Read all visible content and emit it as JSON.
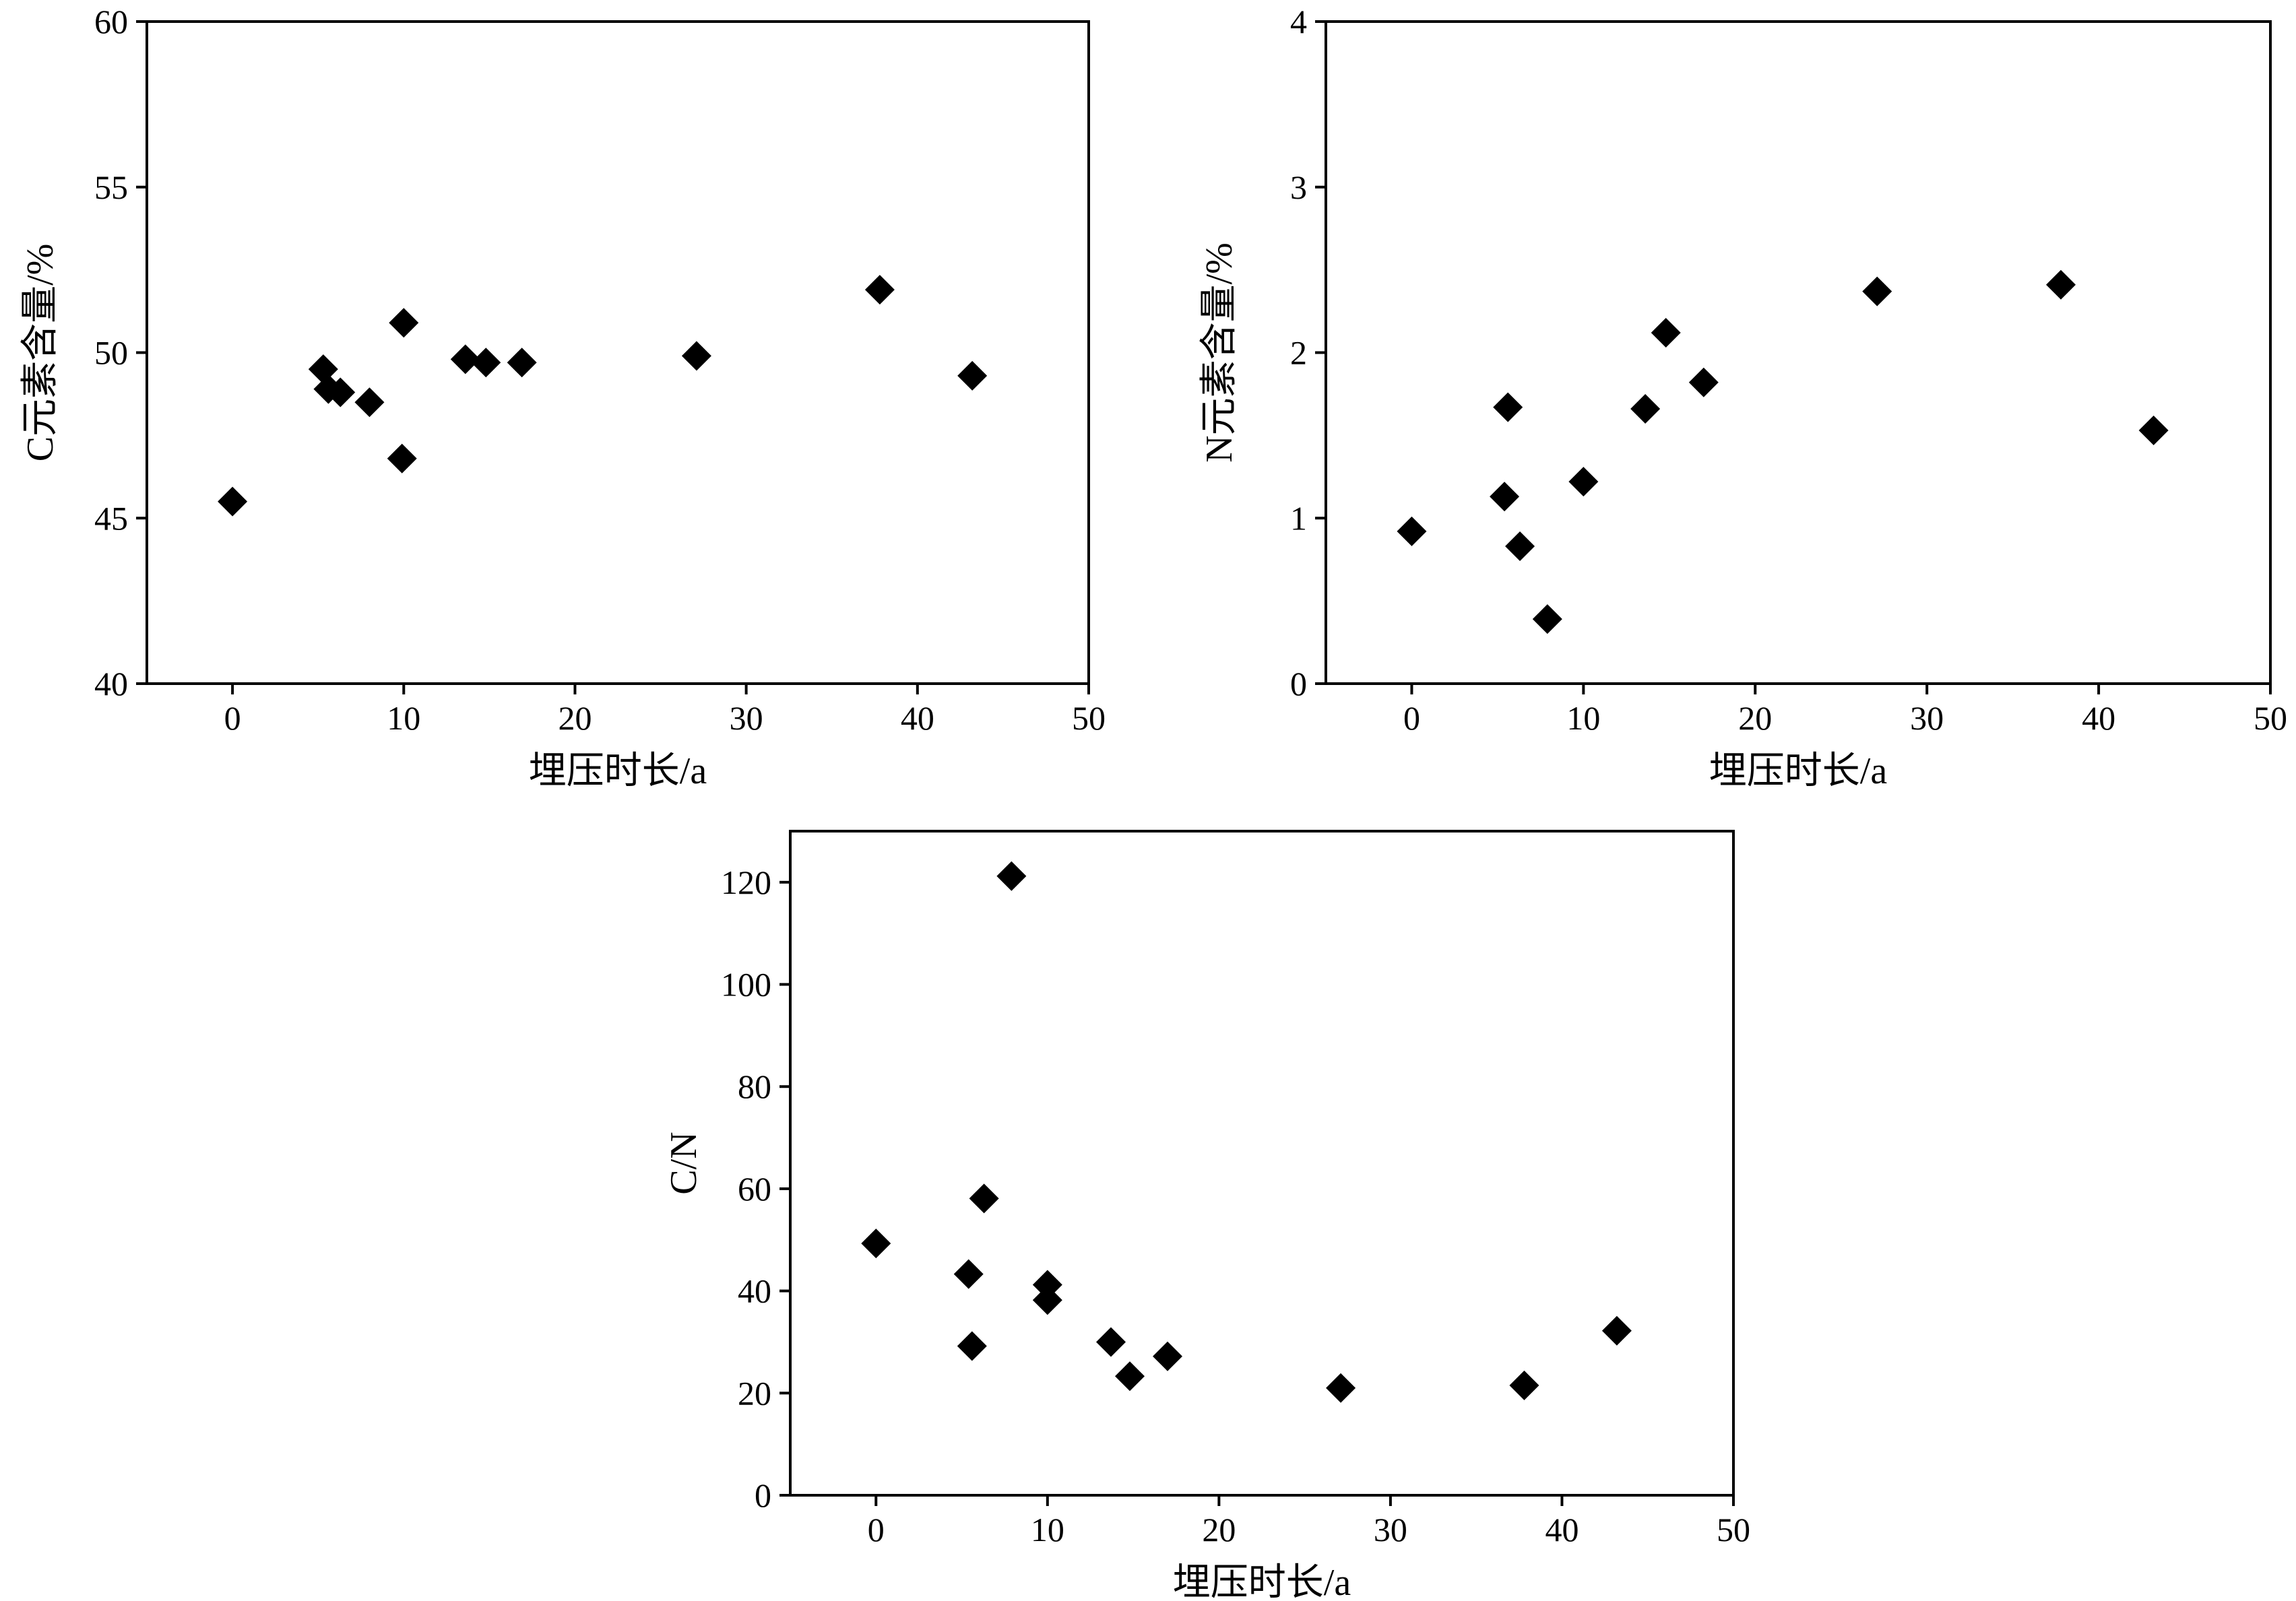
{
  "chart_data": [
    {
      "type": "scatter",
      "xlabel": "埋压时长/a",
      "ylabel": "C元素含量/%",
      "xlim": [
        -5,
        50
      ],
      "ylim": [
        40,
        60
      ],
      "xticks": [
        "0",
        "10",
        "20",
        "30",
        "40",
        "50"
      ],
      "yticks": [
        "40",
        "45",
        "50",
        "55",
        "60"
      ],
      "marker": "diamond",
      "color": "#000000",
      "points": [
        {
          "x": 0,
          "y": 45.5
        },
        {
          "x": 5.3,
          "y": 49.5
        },
        {
          "x": 5.6,
          "y": 48.9
        },
        {
          "x": 6.3,
          "y": 48.8
        },
        {
          "x": 8,
          "y": 48.5
        },
        {
          "x": 9.9,
          "y": 46.8
        },
        {
          "x": 10,
          "y": 50.9
        },
        {
          "x": 13.6,
          "y": 49.8
        },
        {
          "x": 14.8,
          "y": 49.7
        },
        {
          "x": 16.9,
          "y": 49.7
        },
        {
          "x": 27.1,
          "y": 49.9
        },
        {
          "x": 37.8,
          "y": 51.9
        },
        {
          "x": 43.2,
          "y": 49.3
        }
      ]
    },
    {
      "type": "scatter",
      "xlabel": "埋压时长/a",
      "ylabel": "N元素含量/%",
      "xlim": [
        -5,
        50
      ],
      "ylim": [
        0,
        4
      ],
      "xticks": [
        "0",
        "10",
        "20",
        "30",
        "40",
        "50"
      ],
      "yticks": [
        "0",
        "1",
        "2",
        "3",
        "4"
      ],
      "marker": "diamond",
      "color": "#000000",
      "points": [
        {
          "x": 0,
          "y": 0.92
        },
        {
          "x": 5.4,
          "y": 1.13
        },
        {
          "x": 5.6,
          "y": 1.67
        },
        {
          "x": 6.3,
          "y": 0.83
        },
        {
          "x": 7.9,
          "y": 0.39
        },
        {
          "x": 10,
          "y": 1.22
        },
        {
          "x": 13.6,
          "y": 1.66
        },
        {
          "x": 14.8,
          "y": 2.12
        },
        {
          "x": 17,
          "y": 1.82
        },
        {
          "x": 27.1,
          "y": 2.37
        },
        {
          "x": 37.8,
          "y": 2.41
        },
        {
          "x": 43.2,
          "y": 1.53
        }
      ]
    },
    {
      "type": "scatter",
      "xlabel": "埋压时长/a",
      "ylabel": "C/N",
      "xlim": [
        -5,
        50
      ],
      "ylim": [
        0,
        130
      ],
      "xticks": [
        "0",
        "10",
        "20",
        "30",
        "40",
        "50"
      ],
      "yticks": [
        "0",
        "20",
        "40",
        "60",
        "80",
        "100",
        "120"
      ],
      "marker": "diamond",
      "color": "#000000",
      "points": [
        {
          "x": 0,
          "y": 49.3
        },
        {
          "x": 5.4,
          "y": 43.3
        },
        {
          "x": 5.6,
          "y": 29.2
        },
        {
          "x": 6.3,
          "y": 58.1
        },
        {
          "x": 7.9,
          "y": 121.2
        },
        {
          "x": 10,
          "y": 41.2
        },
        {
          "x": 10,
          "y": 38.2
        },
        {
          "x": 13.7,
          "y": 30
        },
        {
          "x": 14.8,
          "y": 23.3
        },
        {
          "x": 17,
          "y": 27.2
        },
        {
          "x": 27.1,
          "y": 21
        },
        {
          "x": 37.8,
          "y": 21.5
        },
        {
          "x": 43.2,
          "y": 32.2
        }
      ]
    }
  ]
}
